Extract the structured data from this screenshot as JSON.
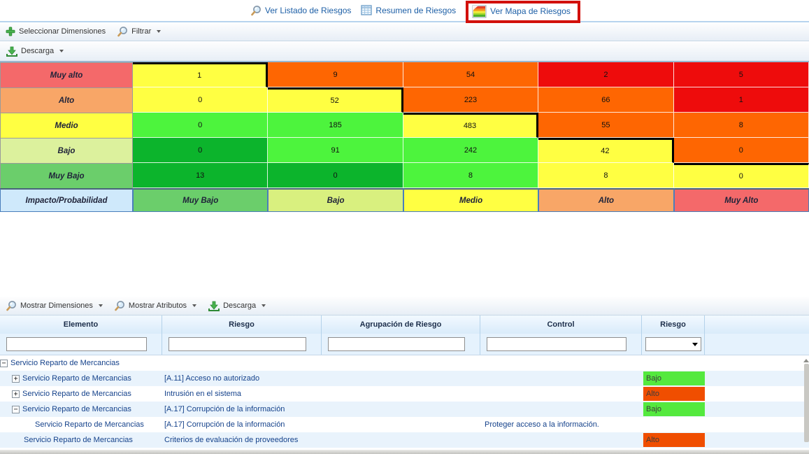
{
  "tabs": {
    "items": [
      {
        "label": "Ver Listado de Riesgos",
        "icon": "search-icon"
      },
      {
        "label": "Resumen de Riesgos",
        "icon": "table-icon"
      },
      {
        "label": "Ver Mapa de Riesgos",
        "icon": "risk-map-icon",
        "highlighted": true
      }
    ],
    "highlight_color": "#d2100b"
  },
  "toolbars": {
    "dimensions": {
      "items": [
        {
          "label": "Seleccionar Dimensiones",
          "icon": "plus-icon",
          "caret": false
        },
        {
          "label": "Filtrar",
          "icon": "search-icon",
          "caret": true
        }
      ]
    },
    "download": {
      "items": [
        {
          "label": "Descarga",
          "icon": "download-icon",
          "caret": true
        }
      ]
    },
    "grid": {
      "items": [
        {
          "label": "Mostrar Dimensiones",
          "icon": "search-icon",
          "caret": true
        },
        {
          "label": "Mostrar Atributos",
          "icon": "search-icon",
          "caret": true
        },
        {
          "label": "Descarga",
          "icon": "download-icon",
          "caret": true
        }
      ]
    }
  },
  "matrix": {
    "corner_label": "Impacto/Probabilidad",
    "corner_color": "#cfe9fb",
    "row_labels": [
      "Muy alto",
      "Alto",
      "Medio",
      "Bajo",
      "Muy Bajo"
    ],
    "row_colors": [
      "#f4696a",
      "#f8a667",
      "#ffff42",
      "#dcf19d",
      "#6bce6b"
    ],
    "col_labels": [
      "Muy Bajo",
      "Bajo",
      "Medio",
      "Alto",
      "Muy Alto"
    ],
    "col_colors": [
      "#6bce6b",
      "#d9f07f",
      "#ffff42",
      "#f8a667",
      "#f4696a"
    ],
    "palette": {
      "yellow": "#ffff42",
      "orange": "#fe6602",
      "red": "#ee0c0c",
      "green": "#4df43d",
      "darkgreen": "#0cb42c"
    },
    "threshold_line_color": "#000000",
    "cells": [
      [
        {
          "v": "1",
          "c": "yellow",
          "line": "tr"
        },
        {
          "v": "9",
          "c": "orange"
        },
        {
          "v": "54",
          "c": "orange"
        },
        {
          "v": "2",
          "c": "red"
        },
        {
          "v": "5",
          "c": "red"
        }
      ],
      [
        {
          "v": "0",
          "c": "yellow"
        },
        {
          "v": "52",
          "c": "yellow",
          "line": "tr"
        },
        {
          "v": "223",
          "c": "orange"
        },
        {
          "v": "66",
          "c": "orange"
        },
        {
          "v": "1",
          "c": "red"
        }
      ],
      [
        {
          "v": "0",
          "c": "green"
        },
        {
          "v": "185",
          "c": "green"
        },
        {
          "v": "483",
          "c": "yellow",
          "line": "tr"
        },
        {
          "v": "55",
          "c": "orange"
        },
        {
          "v": "8",
          "c": "orange"
        }
      ],
      [
        {
          "v": "0",
          "c": "darkgreen"
        },
        {
          "v": "91",
          "c": "green"
        },
        {
          "v": "242",
          "c": "green"
        },
        {
          "v": "42",
          "c": "yellow",
          "line": "tr"
        },
        {
          "v": "0",
          "c": "orange"
        }
      ],
      [
        {
          "v": "13",
          "c": "darkgreen"
        },
        {
          "v": "0",
          "c": "darkgreen"
        },
        {
          "v": "8",
          "c": "green"
        },
        {
          "v": "8",
          "c": "yellow"
        },
        {
          "v": "0",
          "c": "yellow",
          "line": "t"
        }
      ]
    ]
  },
  "chart_data": {
    "type": "heatmap",
    "title": "Mapa de Riesgos",
    "x_categories": [
      "Muy Bajo",
      "Bajo",
      "Medio",
      "Alto",
      "Muy Alto"
    ],
    "y_categories": [
      "Muy alto",
      "Alto",
      "Medio",
      "Bajo",
      "Muy Bajo"
    ],
    "corner_label": "Impacto/Probabilidad",
    "values": [
      [
        1,
        9,
        54,
        2,
        5
      ],
      [
        0,
        52,
        223,
        66,
        1
      ],
      [
        0,
        185,
        483,
        55,
        8
      ],
      [
        0,
        91,
        242,
        42,
        0
      ],
      [
        13,
        0,
        8,
        8,
        0
      ]
    ],
    "cell_colors": [
      [
        "yellow",
        "orange",
        "orange",
        "red",
        "red"
      ],
      [
        "yellow",
        "yellow",
        "orange",
        "orange",
        "red"
      ],
      [
        "green",
        "green",
        "yellow",
        "orange",
        "orange"
      ],
      [
        "darkgreen",
        "green",
        "green",
        "yellow",
        "orange"
      ],
      [
        "darkgreen",
        "darkgreen",
        "green",
        "yellow",
        "yellow"
      ]
    ],
    "annotations": "black staircase threshold line along diagonal cells (top+right borders)"
  },
  "grid": {
    "columns": [
      "Elemento",
      "Riesgo",
      "Agrupación de Riesgo",
      "Control",
      "Riesgo"
    ],
    "filter": {
      "inputs": [
        "",
        "",
        "",
        ""
      ],
      "select_value": ""
    },
    "badge_colors": {
      "Bajo": "#54e93e",
      "Alto": "#f04e00"
    },
    "rows": [
      {
        "elemento": "Servicio Reparto de Mercancias",
        "riesgo": "",
        "agrupacion": "",
        "control": "",
        "badge": "",
        "icon": "minus",
        "pad": 17,
        "alt": false
      },
      {
        "elemento": "Servicio Reparto de Mercancias",
        "riesgo": "[A.11] Acceso no autorizado",
        "agrupacion": "",
        "control": "",
        "badge": "Bajo",
        "icon": "plus",
        "pad": 34,
        "alt": true
      },
      {
        "elemento": "Servicio Reparto de Mercancias",
        "riesgo": "Intrusión en el sistema",
        "agrupacion": "",
        "control": "",
        "badge": "Alto",
        "icon": "plus",
        "pad": 34,
        "alt": false
      },
      {
        "elemento": "Servicio Reparto de Mercancias",
        "riesgo": "[A.17] Corrupción de la información",
        "agrupacion": "",
        "control": "",
        "badge": "Bajo",
        "icon": "minus",
        "pad": 34,
        "alt": true
      },
      {
        "elemento": "Servicio Reparto de Mercancias",
        "riesgo": "[A.17] Corrupción de la información",
        "agrupacion": "",
        "control": "Proteger acceso a la información.",
        "badge": "",
        "icon": null,
        "pad": 50,
        "alt": false
      },
      {
        "elemento": "Servicio Reparto de Mercancias",
        "riesgo": "Criterios de evaluación de proveedores",
        "agrupacion": "",
        "control": "",
        "badge": "Alto",
        "icon": null,
        "pad": 34,
        "alt": true
      }
    ]
  }
}
